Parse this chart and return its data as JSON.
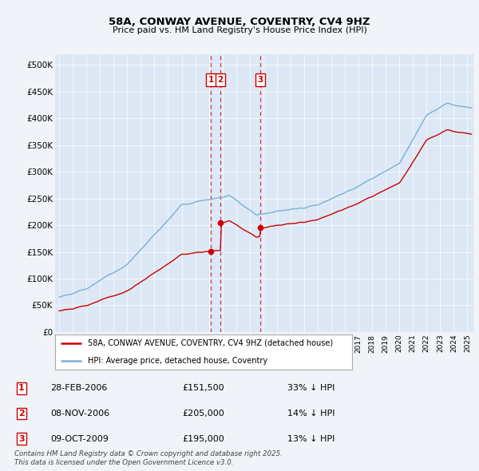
{
  "title": "58A, CONWAY AVENUE, COVENTRY, CV4 9HZ",
  "subtitle": "Price paid vs. HM Land Registry's House Price Index (HPI)",
  "background_color": "#f0f4f8",
  "plot_bg_color": "#dce8f5",
  "ylim": [
    0,
    520000
  ],
  "yticks": [
    0,
    50000,
    100000,
    150000,
    200000,
    250000,
    300000,
    350000,
    400000,
    450000,
    500000
  ],
  "ytick_labels": [
    "£0",
    "£50K",
    "£100K",
    "£150K",
    "£200K",
    "£250K",
    "£300K",
    "£350K",
    "£400K",
    "£450K",
    "£500K"
  ],
  "sale_color": "#cc0000",
  "hpi_color": "#7bafd4",
  "sale_label": "58A, CONWAY AVENUE, COVENTRY, CV4 9HZ (detached house)",
  "hpi_label": "HPI: Average price, detached house, Coventry",
  "trans_dates": [
    2006.16,
    2006.85,
    2009.77
  ],
  "trans_prices": [
    151500,
    205000,
    195000
  ],
  "trans_nums": [
    1,
    2,
    3
  ],
  "footer_line1": "Contains HM Land Registry data © Crown copyright and database right 2025.",
  "footer_line2": "This data is licensed under the Open Government Licence v3.0.",
  "legend_entries": [
    {
      "label": "1",
      "date": "28-FEB-2006",
      "price": "£151,500",
      "pct": "33% ↓ HPI"
    },
    {
      "label": "2",
      "date": "08-NOV-2006",
      "price": "£205,000",
      "pct": "14% ↓ HPI"
    },
    {
      "label": "3",
      "date": "09-OCT-2009",
      "price": "£195,000",
      "pct": "13% ↓ HPI"
    }
  ]
}
